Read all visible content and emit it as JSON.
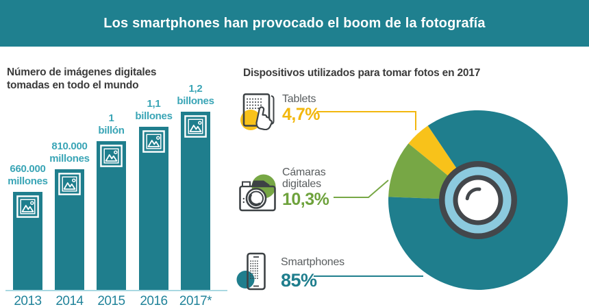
{
  "banner": {
    "title": "Los smartphones han provocado el boom de la fotografía",
    "background": "#1f808f",
    "text_color": "#ffffff"
  },
  "bar_chart": {
    "title": "Número de imágenes digitales\ntomadas en todo el mundo"
  },
  "pie_chart": {
    "title": "Dispositivos utilizados para tomar fotos en 2017",
    "legend": [
      {
        "label": "Tablets",
        "percent": "4,7%",
        "color": "#f2b70d",
        "icon": "tablet-icon"
      },
      {
        "label": "Cámaras\ndigitales",
        "percent": "10,3%",
        "color": "#6ea23c",
        "icon": "digital-camera-icon"
      },
      {
        "label": "Smartphones",
        "percent": "85%",
        "color": "#1f7e8d",
        "icon": "smartphone-icon"
      }
    ]
  },
  "colors": {
    "teal": "#1f7e8d",
    "banner_teal": "#1f808f",
    "bar_value_label": "#3aa5b6",
    "year_label": "#21839a",
    "baseline": "#a9d8e2",
    "yellow": "#f8c21a",
    "yellow_text": "#f2b70d",
    "green": "#77a745",
    "green_text": "#6ea23c",
    "title_text": "#3b3b3b",
    "legend_label_text": "#595d5f",
    "icon_stroke": "#3d4245",
    "lens_dark": "#43474b",
    "lens_blue": "#8ccade"
  },
  "chart_data": [
    {
      "type": "bar",
      "title": "Número de imágenes digitales tomadas en todo el mundo",
      "categories": [
        "2013",
        "2014",
        "2015",
        "2016",
        "2017*"
      ],
      "values": [
        0.66,
        0.81,
        1.0,
        1.1,
        1.2
      ],
      "unit": "billones de imágenes",
      "value_labels": [
        "660.000\nmillones",
        "810.000\nmillones",
        "1\nbillón",
        "1,1\nbillones",
        "1,2\nbillones"
      ],
      "ylim": [
        0,
        1.2
      ],
      "bar_color": "#1f7e8d",
      "label_color": "#3aa5b6",
      "grid": false
    },
    {
      "type": "pie",
      "title": "Dispositivos utilizados para tomar fotos en 2017",
      "labels": [
        "Tablets",
        "Cámaras digitales",
        "Smartphones"
      ],
      "values": [
        4.7,
        10.3,
        85
      ],
      "value_labels": [
        "4,7%",
        "10,3%",
        "85%"
      ],
      "colors": [
        "#f8c21a",
        "#77a745",
        "#1f7e8d"
      ],
      "start_angle_deg": 124,
      "direction": "counterclockwise",
      "legend_position": "left",
      "center_graphic": "camera-lens"
    }
  ]
}
